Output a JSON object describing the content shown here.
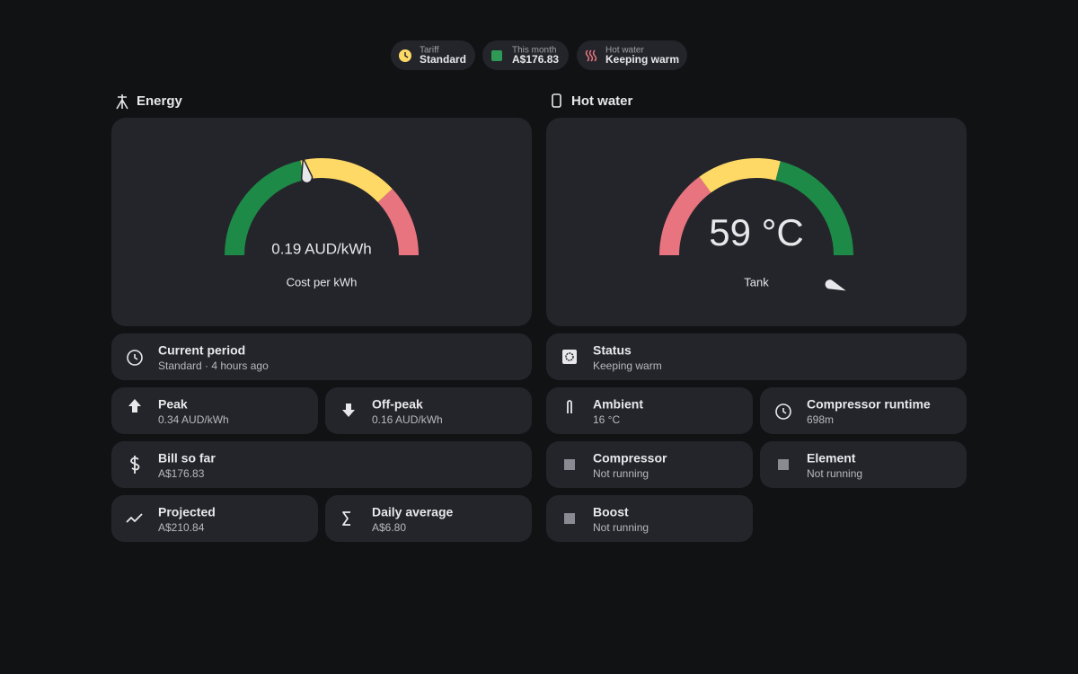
{
  "chips": [
    {
      "label": "Tariff",
      "value": "Standard"
    },
    {
      "label": "This month",
      "value": "A$176.83"
    },
    {
      "label": "Hot water",
      "value": "Keeping warm"
    }
  ],
  "sections": [
    {
      "title": "Energy",
      "gauge": {
        "value": "0.19 AUD/kWh",
        "name": "Cost per kWh"
      },
      "tiles": [
        {
          "title": "Current period",
          "subtitle": "Standard · 4 hours ago"
        },
        {
          "title": "Peak",
          "subtitle": "0.34 AUD/kWh"
        },
        {
          "title": "Off-peak",
          "subtitle": "0.16 AUD/kWh"
        },
        {
          "title": "Bill so far",
          "subtitle": "A$176.83"
        },
        {
          "title": "Projected",
          "subtitle": "A$210.84"
        },
        {
          "title": "Daily average",
          "subtitle": "A$6.80"
        }
      ]
    },
    {
      "title": "Hot water",
      "gauge": {
        "value": "59 °C",
        "name": "Tank"
      },
      "tiles": [
        {
          "title": "Status",
          "subtitle": "Keeping warm"
        },
        {
          "title": "Ambient",
          "subtitle": "16 °C"
        },
        {
          "title": "Compressor runtime",
          "subtitle": "698m"
        },
        {
          "title": "Compressor",
          "subtitle": "Not running"
        },
        {
          "title": "Element",
          "subtitle": "Not running"
        },
        {
          "title": "Boost",
          "subtitle": "Not running"
        }
      ]
    }
  ]
}
